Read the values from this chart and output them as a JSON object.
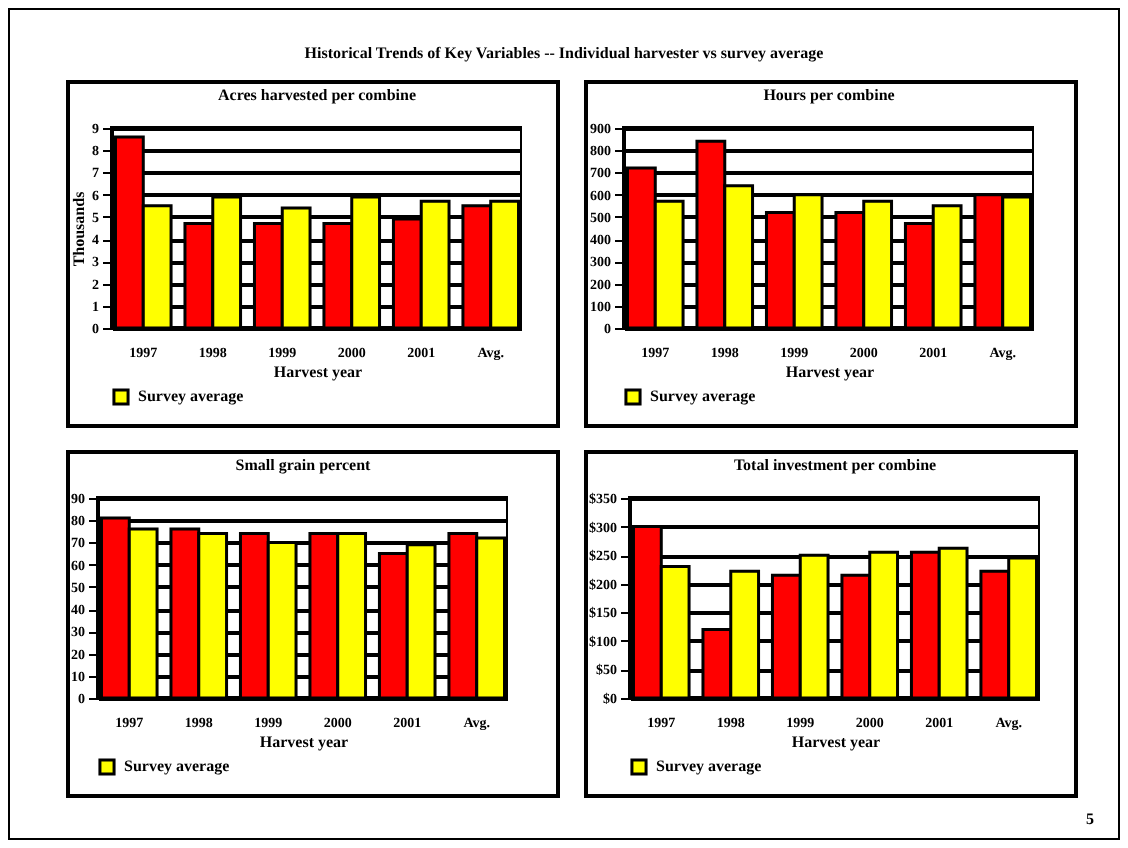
{
  "chart_data": [
    {
      "type": "bar",
      "title": "Acres harvested per combine",
      "xlabel": "Harvest year",
      "ylabel": "Thousands",
      "annotations": [
        "Historical Trends of Key Variables -- Individual harvester vs survey average"
      ],
      "categories": [
        "1997",
        "1998",
        "1999",
        "2000",
        "2001",
        "Avg."
      ],
      "series": [
        {
          "color": "#ff0000",
          "values": [
            8.6,
            4.7,
            4.7,
            4.7,
            4.9,
            5.5
          ]
        },
        {
          "name": "Survey average",
          "color": "#ffff00",
          "values": [
            5.5,
            5.9,
            5.4,
            5.9,
            5.7,
            5.7
          ]
        }
      ],
      "ylim": [
        0,
        9
      ],
      "yticks": [
        0,
        1,
        2,
        3,
        4,
        5,
        6,
        7,
        8,
        9
      ],
      "grid": "y",
      "legend": "bottom"
    },
    {
      "type": "bar",
      "title": "Hours per combine",
      "xlabel": "Harvest year",
      "categories": [
        "1997",
        "1998",
        "1999",
        "2000",
        "2001",
        "Avg."
      ],
      "series": [
        {
          "color": "#ff0000",
          "values": [
            720,
            840,
            520,
            520,
            470,
            600
          ]
        },
        {
          "name": "Survey average",
          "color": "#ffff00",
          "values": [
            570,
            640,
            600,
            570,
            550,
            590
          ]
        }
      ],
      "ylim": [
        0,
        900
      ],
      "yticks": [
        0,
        100,
        200,
        300,
        400,
        500,
        600,
        700,
        800,
        900
      ],
      "grid": "y",
      "legend": "bottom"
    },
    {
      "type": "bar",
      "title": "Small grain percent",
      "xlabel": "Harvest year",
      "categories": [
        "1997",
        "1998",
        "1999",
        "2000",
        "2001",
        "Avg."
      ],
      "series": [
        {
          "color": "#ff0000",
          "values": [
            81,
            76,
            74,
            74,
            65,
            74
          ]
        },
        {
          "name": "Survey average",
          "color": "#ffff00",
          "values": [
            76,
            74,
            70,
            74,
            69,
            72
          ]
        }
      ],
      "ylim": [
        0,
        90
      ],
      "yticks": [
        0,
        10,
        20,
        30,
        40,
        50,
        60,
        70,
        80,
        90
      ],
      "grid": "y",
      "legend": "bottom"
    },
    {
      "type": "bar",
      "title": "Total investment per combine",
      "xlabel": "Harvest year",
      "annotations": [
        "5"
      ],
      "categories": [
        "1997",
        "1998",
        "1999",
        "2000",
        "2001",
        "Avg."
      ],
      "series": [
        {
          "color": "#ff0000",
          "values": [
            300,
            120,
            215,
            215,
            255,
            222
          ]
        },
        {
          "name": "Survey average",
          "color": "#ffff00",
          "values": [
            230,
            222,
            250,
            255,
            262,
            245
          ]
        }
      ],
      "ylim": [
        0,
        350
      ],
      "yticks": [
        {
          "value": 0,
          "label": "$0"
        },
        {
          "value": 50,
          "label": "$50"
        },
        {
          "value": 100,
          "label": "$100"
        },
        {
          "value": 150,
          "label": "$150"
        },
        {
          "value": 200,
          "label": "$200"
        },
        {
          "value": 250,
          "label": "$250"
        },
        {
          "value": 300,
          "label": "$300"
        },
        {
          "value": 350,
          "label": "$350"
        }
      ],
      "grid": "y",
      "legend": "bottom"
    }
  ]
}
